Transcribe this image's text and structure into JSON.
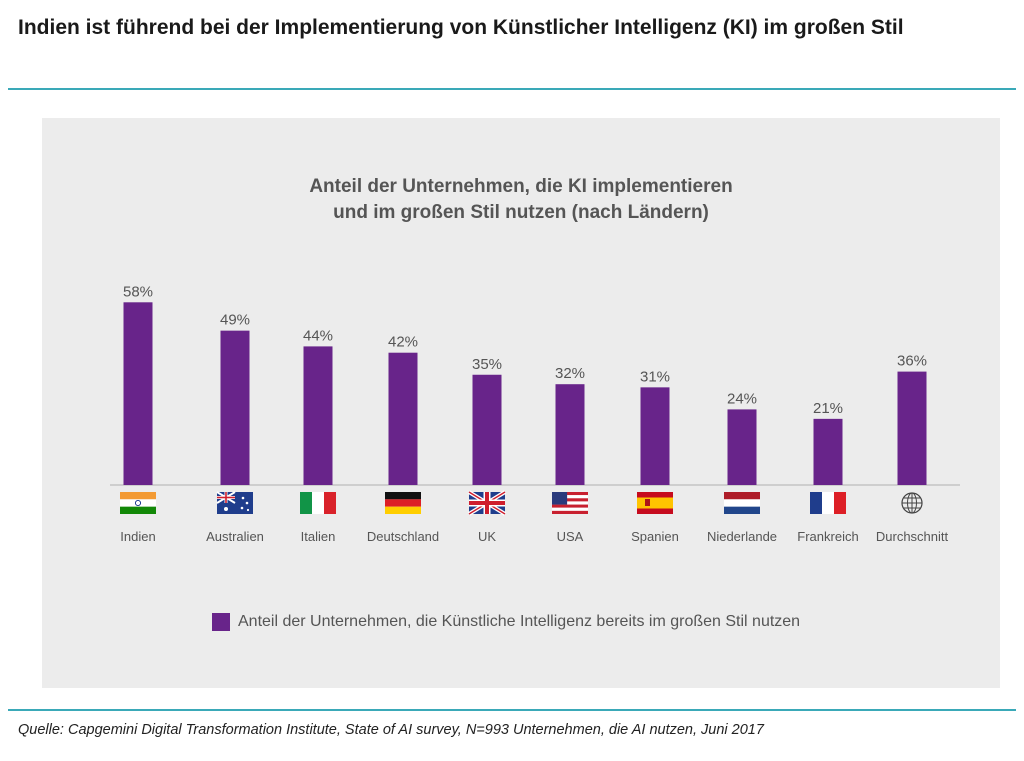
{
  "headline": "Indien ist führend bei der Implementierung von Künstlicher Intelligenz (KI) im großen Stil",
  "source": "Quelle: Capgemini Digital Transformation Institute, State of AI survey, N=993 Unternehmen, die AI nutzen, Juni 2017",
  "colors": {
    "bar": "#68248a",
    "accent_rule": "#3aa9b8",
    "panel": "#ececec"
  },
  "chart_data": {
    "type": "bar",
    "title_lines": [
      "Anteil der Unternehmen, die KI implementieren",
      "und im großen Stil nutzen (nach Ländern)"
    ],
    "categories": [
      "Indien",
      "Australien",
      "Italien",
      "Deutschland",
      "UK",
      "USA",
      "Spanien",
      "Niederlande",
      "Frankreich",
      "Durchschnitt"
    ],
    "flag_icons": [
      "india-flag",
      "australia-flag",
      "italy-flag",
      "germany-flag",
      "uk-flag",
      "usa-flag",
      "spain-flag",
      "netherlands-flag",
      "france-flag",
      "globe-icon"
    ],
    "series": [
      {
        "name": "Anteil der Unternehmen, die Künstliche Intelligenz bereits im großen Stil nutzen",
        "values": [
          58,
          49,
          44,
          42,
          35,
          32,
          31,
          24,
          21,
          36
        ],
        "labels": [
          "58%",
          "49%",
          "44%",
          "42%",
          "35%",
          "32%",
          "31%",
          "24%",
          "21%",
          "36%"
        ]
      }
    ],
    "ylim": [
      0,
      60
    ],
    "grid": false,
    "legend_position": "bottom"
  }
}
